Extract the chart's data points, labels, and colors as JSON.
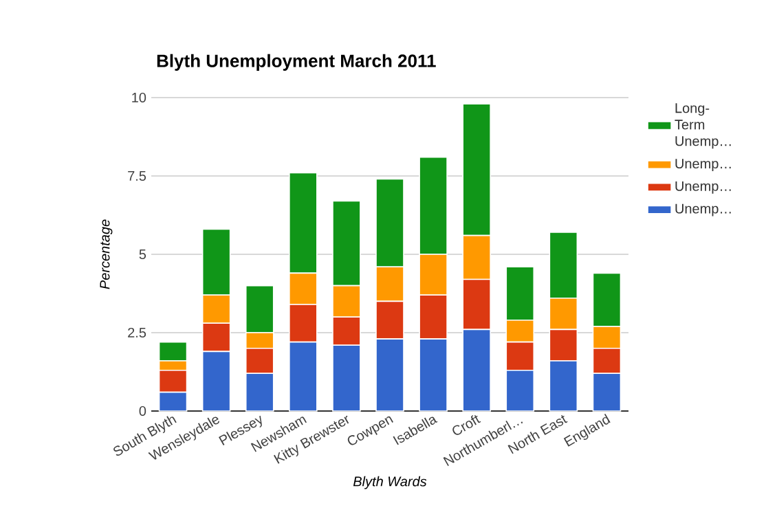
{
  "chart_data": {
    "type": "bar",
    "title": "Blyth Unemployment March 2011",
    "xlabel": "Blyth Wards",
    "ylabel": "Percentage",
    "categories": [
      "South Blyth",
      "Wensleydale",
      "Plessey",
      "Newsham",
      "Kitty Brewster",
      "Cowpen",
      "Isabella",
      "Croft",
      "Northumberl…",
      "North East",
      "England"
    ],
    "stacked": true,
    "ylim": [
      0,
      10
    ],
    "yticks": [
      0,
      2.5,
      5,
      7.5,
      10
    ],
    "grid": "y",
    "legend": "top right",
    "series": [
      {
        "name": "Unemp…",
        "color": "#3366cc",
        "values": [
          0.6,
          1.9,
          1.2,
          2.2,
          2.1,
          2.3,
          2.3,
          2.6,
          1.3,
          1.6,
          1.2
        ]
      },
      {
        "name": "Unemp…",
        "color": "#dc3912",
        "values": [
          0.7,
          0.9,
          0.8,
          1.2,
          0.9,
          1.2,
          1.4,
          1.6,
          0.9,
          1.0,
          0.8
        ]
      },
      {
        "name": "Unemp…",
        "color": "#ff9900",
        "values": [
          0.3,
          0.9,
          0.5,
          1.0,
          1.0,
          1.1,
          1.3,
          1.4,
          0.7,
          1.0,
          0.7
        ]
      },
      {
        "name": "Long-Term Unemp…",
        "color": "#109618",
        "values": [
          0.6,
          2.1,
          1.5,
          3.2,
          2.7,
          2.8,
          3.1,
          4.2,
          1.7,
          2.1,
          1.7
        ]
      }
    ]
  }
}
